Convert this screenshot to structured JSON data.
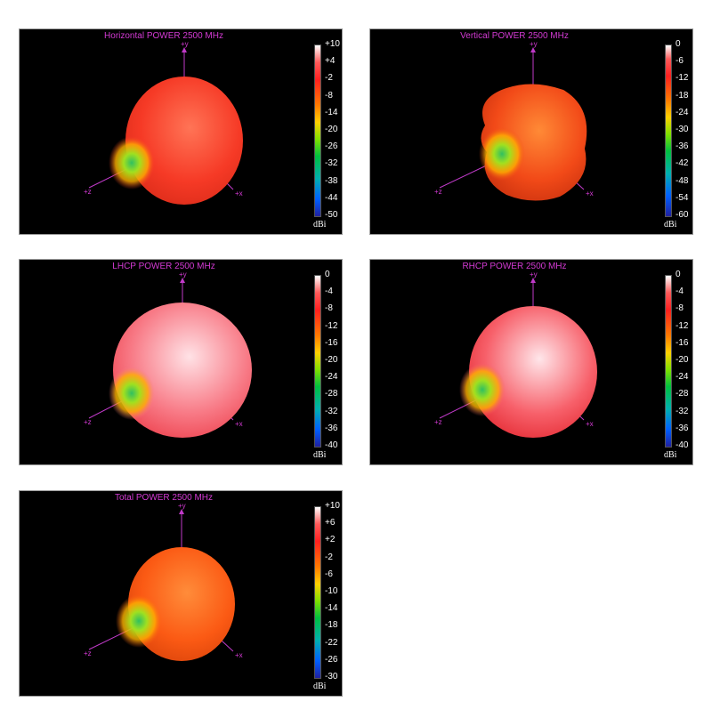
{
  "panels": [
    {
      "title": "Horizontal POWER 2500  MHz",
      "unit": "dBi",
      "ticks": [
        "+10",
        "+4",
        "-2",
        "-8",
        "-14",
        "-20",
        "-26",
        "-32",
        "-38",
        "-44",
        "-50"
      ],
      "axes": {
        "y": "+y",
        "z": "+z",
        "x": "+x"
      },
      "colors": {
        "base": "#f63a26",
        "hi": "#ff7456",
        "shade": "#d82a18"
      }
    },
    {
      "title": "Vertical POWER 2500  MHz",
      "unit": "dBi",
      "ticks": [
        "0",
        "-6",
        "-12",
        "-18",
        "-24",
        "-30",
        "-36",
        "-42",
        "-48",
        "-54",
        "-60"
      ],
      "axes": {
        "y": "+y",
        "z": "+z",
        "x": "+x"
      },
      "colors": {
        "base": "#f24a18",
        "hi": "#ff8a36",
        "shade": "#c8300e"
      }
    },
    {
      "title": "LHCP POWER 2500  MHz",
      "unit": "dBi",
      "ticks": [
        "0",
        "-4",
        "-8",
        "-12",
        "-16",
        "-20",
        "-24",
        "-28",
        "-32",
        "-36",
        "-40"
      ],
      "axes": {
        "y": "+y",
        "z": "+z",
        "x": "+x"
      },
      "colors": {
        "base": "#f87a86",
        "hi": "#ffe2e6",
        "shade": "#ec3c48"
      }
    },
    {
      "title": "RHCP POWER 2500  MHz",
      "unit": "dBi",
      "ticks": [
        "0",
        "-4",
        "-8",
        "-12",
        "-16",
        "-20",
        "-24",
        "-28",
        "-32",
        "-36",
        "-40"
      ],
      "axes": {
        "y": "+y",
        "z": "+z",
        "x": "+x"
      },
      "colors": {
        "base": "#f7606a",
        "hi": "#ffe6ea",
        "shade": "#e2262e"
      }
    },
    {
      "title": "Total POWER 2500  MHz",
      "unit": "dBi",
      "ticks": [
        "+10",
        "+6",
        "+2",
        "-2",
        "-6",
        "-10",
        "-14",
        "-18",
        "-22",
        "-26",
        "-30"
      ],
      "axes": {
        "y": "+y",
        "z": "+z",
        "x": "+x"
      },
      "colors": {
        "base": "#fb5a14",
        "hi": "#ff8c3a",
        "shade": "#d8420a"
      }
    }
  ]
}
